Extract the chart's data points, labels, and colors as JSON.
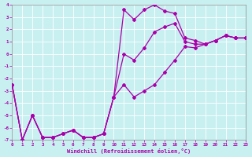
{
  "xlabel": "Windchill (Refroidissement éolien,°C)",
  "bg_color": "#c8f0f0",
  "line_color": "#aa00aa",
  "xlim": [
    0,
    23
  ],
  "ylim": [
    -7,
    4
  ],
  "xticks": [
    0,
    1,
    2,
    3,
    4,
    5,
    6,
    7,
    8,
    9,
    10,
    11,
    12,
    13,
    14,
    15,
    16,
    17,
    18,
    19,
    20,
    21,
    22,
    23
  ],
  "yticks": [
    -7,
    -6,
    -5,
    -4,
    -3,
    -2,
    -1,
    0,
    1,
    2,
    3,
    4
  ],
  "hours": [
    0,
    1,
    2,
    3,
    4,
    5,
    6,
    7,
    8,
    9,
    10,
    11,
    12,
    13,
    14,
    15,
    16,
    17,
    18,
    19,
    20,
    21,
    22,
    23
  ],
  "line_top": [
    -2.5,
    -7.0,
    -5.0,
    -6.8,
    -6.8,
    -6.5,
    -6.2,
    -6.8,
    -6.8,
    -6.5,
    -3.5,
    3.6,
    2.8,
    3.6,
    4.0,
    3.5,
    3.3,
    1.3,
    1.1,
    0.8,
    1.1,
    1.5,
    1.3,
    1.3
  ],
  "line_mid": [
    -2.5,
    -7.0,
    -5.0,
    -6.8,
    -6.8,
    -6.5,
    -6.2,
    -6.8,
    -6.8,
    -6.5,
    -3.5,
    0.0,
    -0.5,
    0.5,
    1.8,
    2.2,
    2.5,
    1.0,
    0.8,
    0.8,
    1.1,
    1.5,
    1.3,
    1.3
  ],
  "line_bot": [
    -2.5,
    -7.0,
    -5.0,
    -6.8,
    -6.8,
    -6.5,
    -6.2,
    -6.8,
    -6.8,
    -6.5,
    -3.5,
    -2.5,
    -3.5,
    -3.0,
    -2.5,
    -1.5,
    -0.5,
    0.6,
    0.5,
    0.8,
    1.1,
    1.5,
    1.3,
    1.3
  ]
}
